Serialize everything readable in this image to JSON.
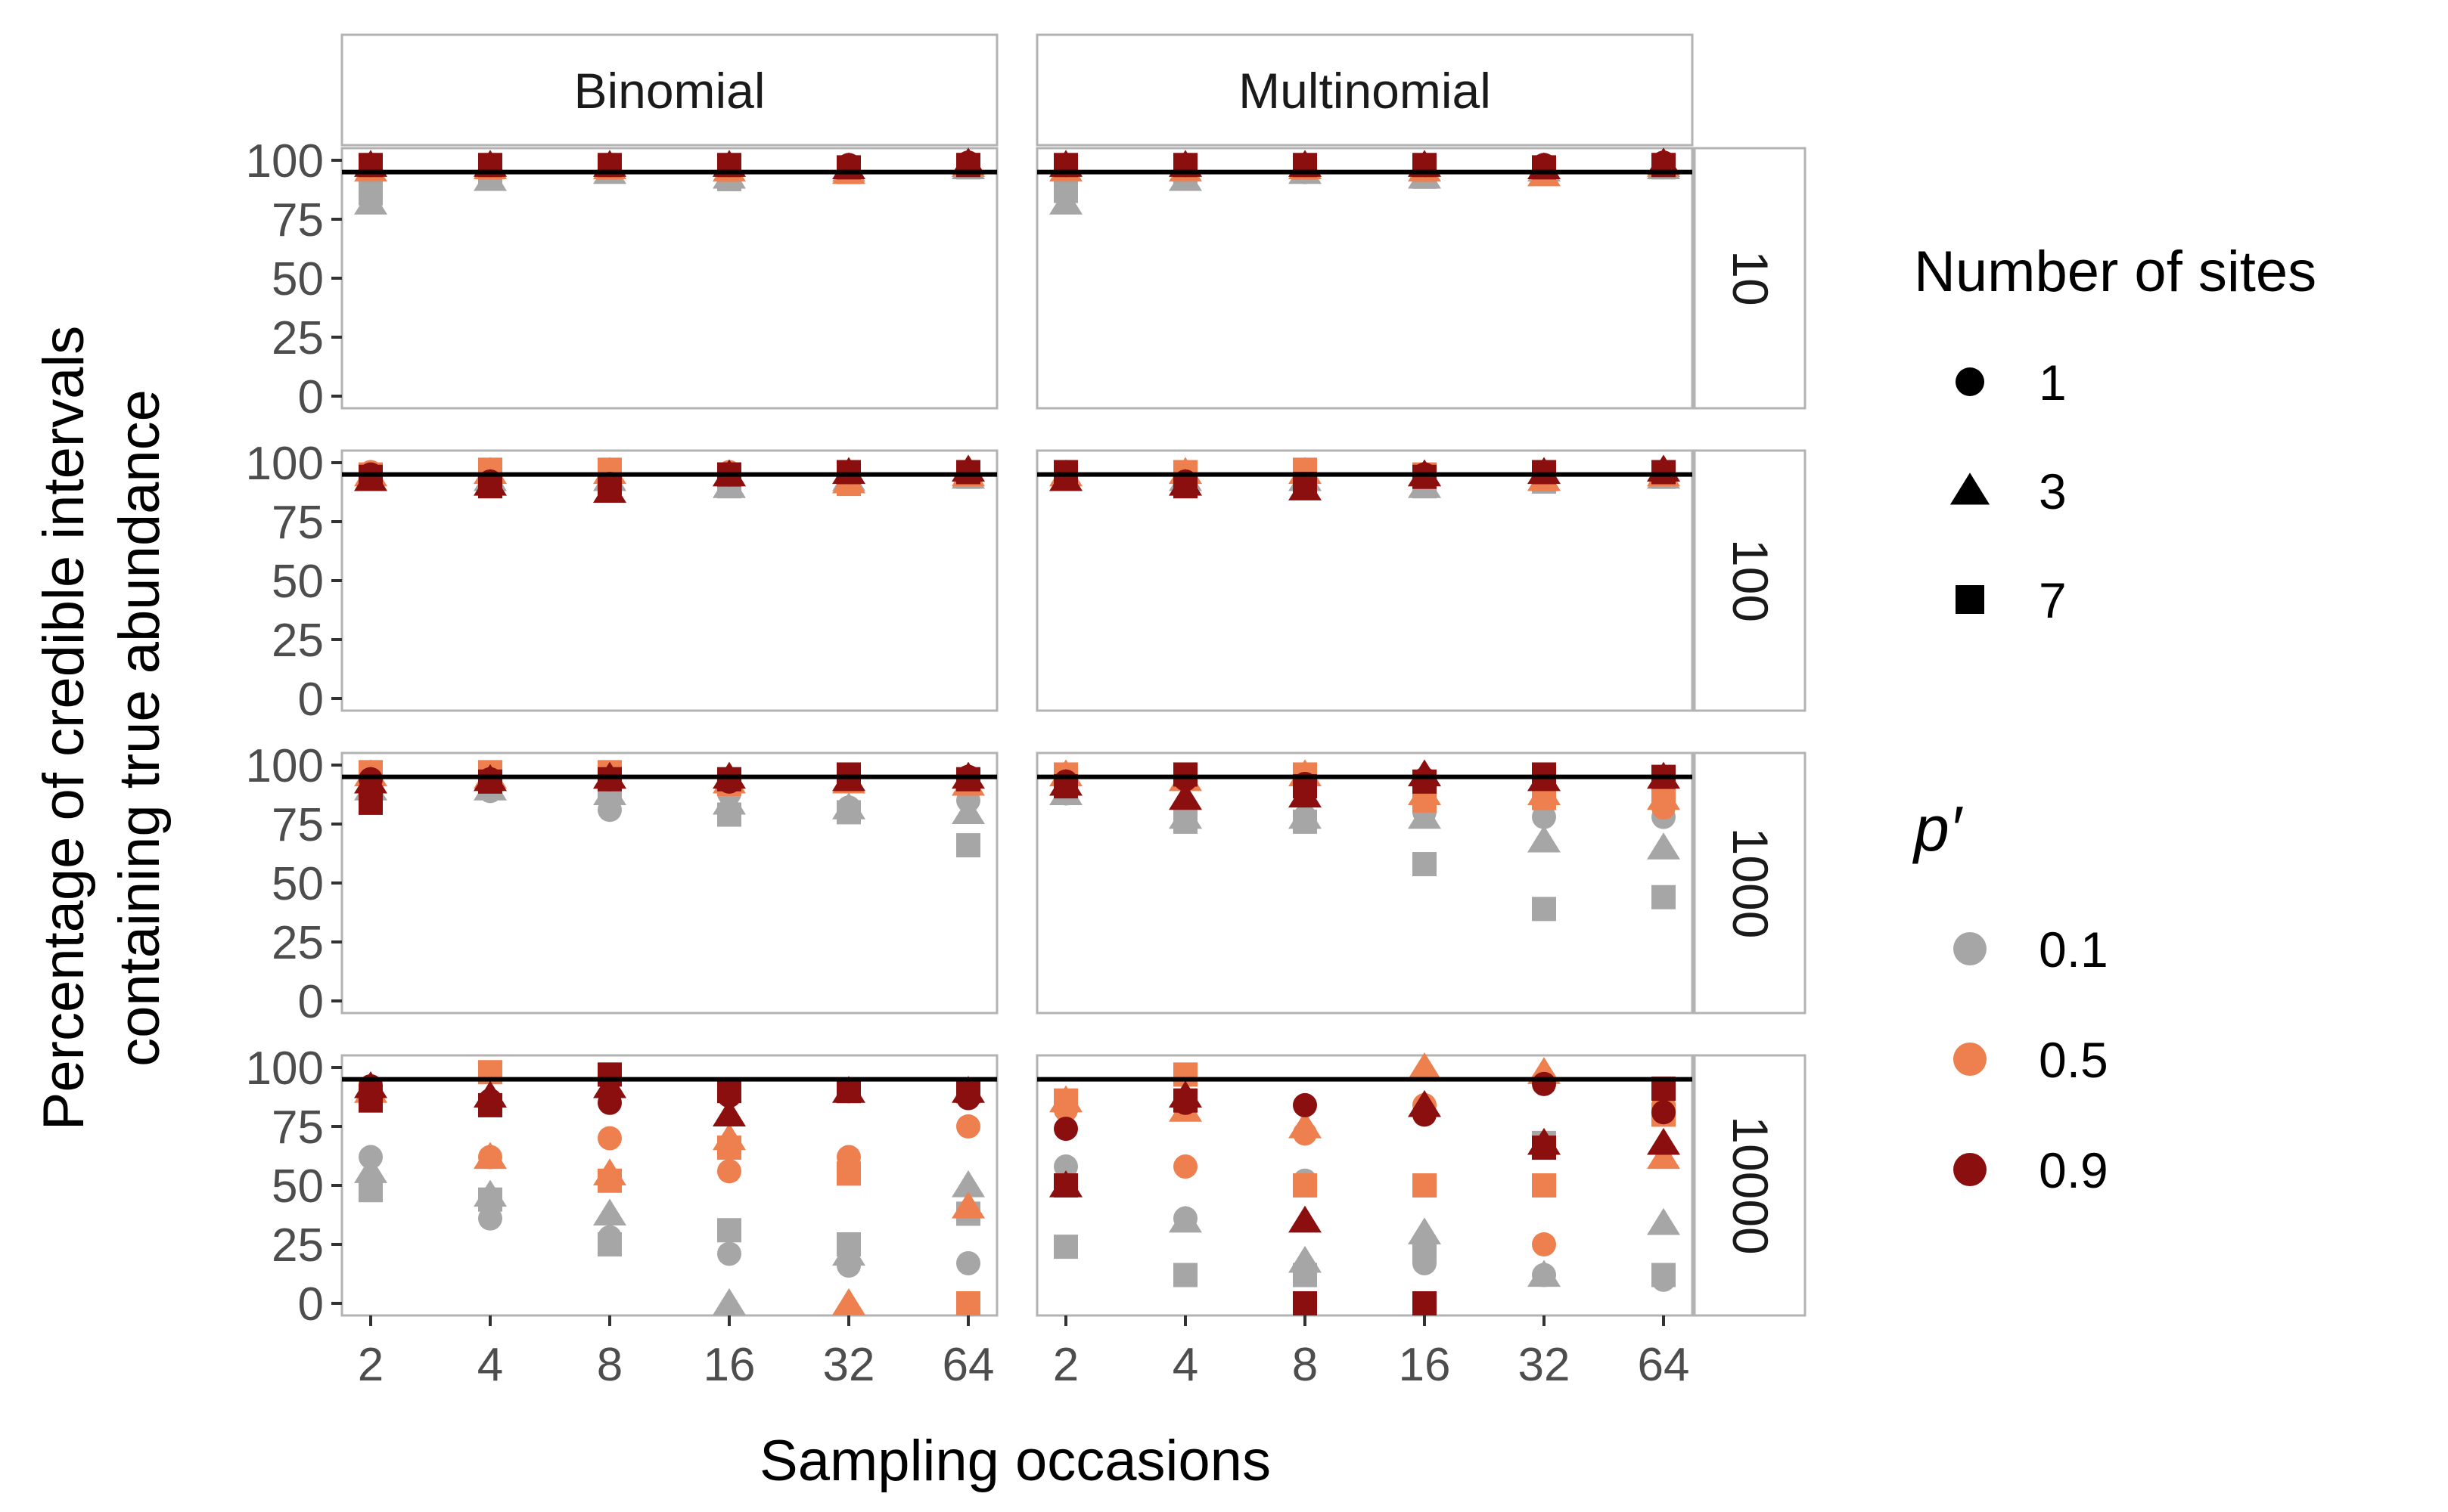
{
  "chart_data": {
    "type": "scatter",
    "facets": {
      "columns": [
        "Binomial",
        "Multinomial"
      ],
      "rows": [
        "10",
        "100",
        "1000",
        "10000"
      ]
    },
    "x": [
      2,
      4,
      8,
      16,
      32,
      64
    ],
    "x_scale": "log2",
    "ylim": [
      0,
      100
    ],
    "y_ticks": [
      "0",
      "25",
      "50",
      "75",
      "100"
    ],
    "x_tick_labels": [
      "2",
      "4",
      "8",
      "16",
      "32",
      "64"
    ],
    "xlabel": "Sampling occasions",
    "ylabel_lines": [
      "Percentage of credible intervals",
      "containing true abundance"
    ],
    "reference_line": 95,
    "grid": false,
    "legend_placement": "right",
    "legend": {
      "shape": {
        "title": "Number of sites",
        "entries": [
          {
            "label": "1",
            "shape": "circle"
          },
          {
            "label": "3",
            "shape": "triangle"
          },
          {
            "label": "7",
            "shape": "square"
          }
        ]
      },
      "color": {
        "title": "p′",
        "entries": [
          {
            "label": "0.1",
            "color": "#a6a6a6"
          },
          {
            "label": "0.5",
            "color": "#ee7f4e"
          },
          {
            "label": "0.9",
            "color": "#8b0f0f"
          }
        ]
      }
    },
    "panels": [
      {
        "column": "Binomial",
        "row": "10",
        "series": [
          {
            "sites": "1",
            "p": "0.1",
            "values": [
              90,
              94,
              96,
              96,
              96,
              98
            ]
          },
          {
            "sites": "3",
            "p": "0.1",
            "values": [
              82,
              92,
              95,
              93,
              96,
              97
            ]
          },
          {
            "sites": "7",
            "p": "0.1",
            "values": [
              86,
              94,
              96,
              92,
              96,
              97
            ]
          },
          {
            "sites": "1",
            "p": "0.5",
            "values": [
              97,
              97,
              97,
              96,
              95,
              98
            ]
          },
          {
            "sites": "3",
            "p": "0.5",
            "values": [
              96,
              97,
              97,
              96,
              95,
              98
            ]
          },
          {
            "sites": "7",
            "p": "0.5",
            "values": [
              97,
              97,
              97,
              96,
              95,
              98
            ]
          },
          {
            "sites": "1",
            "p": "0.9",
            "values": [
              98,
              98,
              98,
              98,
              98,
              99
            ]
          },
          {
            "sites": "3",
            "p": "0.9",
            "values": [
              98,
              98,
              98,
              98,
              97,
              99
            ]
          },
          {
            "sites": "7",
            "p": "0.9",
            "values": [
              98,
              98,
              98,
              98,
              97,
              98
            ]
          }
        ]
      },
      {
        "column": "Multinomial",
        "row": "10",
        "series": [
          {
            "sites": "1",
            "p": "0.1",
            "values": [
              88,
              93,
              95,
              94,
              96,
              97
            ]
          },
          {
            "sites": "3",
            "p": "0.1",
            "values": [
              82,
              92,
              95,
              93,
              96,
              97
            ]
          },
          {
            "sites": "7",
            "p": "0.1",
            "values": [
              87,
              93,
              96,
              93,
              96,
              97
            ]
          },
          {
            "sites": "1",
            "p": "0.5",
            "values": [
              97,
              96,
              97,
              96,
              95,
              98
            ]
          },
          {
            "sites": "3",
            "p": "0.5",
            "values": [
              96,
              96,
              97,
              96,
              94,
              98
            ]
          },
          {
            "sites": "7",
            "p": "0.5",
            "values": [
              97,
              97,
              97,
              96,
              95,
              98
            ]
          },
          {
            "sites": "1",
            "p": "0.9",
            "values": [
              98,
              98,
              98,
              98,
              98,
              99
            ]
          },
          {
            "sites": "3",
            "p": "0.9",
            "values": [
              98,
              98,
              98,
              98,
              97,
              99
            ]
          },
          {
            "sites": "7",
            "p": "0.9",
            "values": [
              98,
              98,
              98,
              98,
              97,
              98
            ]
          }
        ]
      },
      {
        "column": "Binomial",
        "row": "100",
        "series": [
          {
            "sites": "1",
            "p": "0.1",
            "values": [
              94,
              94,
              95,
              92,
              93,
              95
            ]
          },
          {
            "sites": "3",
            "p": "0.1",
            "values": [
              93,
              93,
              93,
              90,
              93,
              94
            ]
          },
          {
            "sites": "7",
            "p": "0.1",
            "values": [
              94,
              94,
              94,
              90,
              93,
              94
            ]
          },
          {
            "sites": "1",
            "p": "0.5",
            "values": [
              96,
              97,
              97,
              96,
              94,
              96
            ]
          },
          {
            "sites": "3",
            "p": "0.5",
            "values": [
              95,
              96,
              96,
              95,
              92,
              95
            ]
          },
          {
            "sites": "7",
            "p": "0.5",
            "values": [
              95,
              97,
              97,
              95,
              91,
              96
            ]
          },
          {
            "sites": "1",
            "p": "0.9",
            "values": [
              95,
              92,
              91,
              95,
              96,
              96
            ]
          },
          {
            "sites": "3",
            "p": "0.9",
            "values": [
              93,
              91,
              88,
              95,
              96,
              97
            ]
          },
          {
            "sites": "7",
            "p": "0.9",
            "values": [
              94,
              90,
              90,
              95,
              96,
              96
            ]
          }
        ]
      },
      {
        "column": "Multinomial",
        "row": "100",
        "series": [
          {
            "sites": "1",
            "p": "0.1",
            "values": [
              94,
              94,
              94,
              92,
              93,
              95
            ]
          },
          {
            "sites": "3",
            "p": "0.1",
            "values": [
              93,
              93,
              93,
              90,
              93,
              94
            ]
          },
          {
            "sites": "7",
            "p": "0.1",
            "values": [
              94,
              94,
              94,
              90,
              92,
              94
            ]
          },
          {
            "sites": "1",
            "p": "0.5",
            "values": [
              96,
              96,
              96,
              95,
              94,
              96
            ]
          },
          {
            "sites": "3",
            "p": "0.5",
            "values": [
              95,
              96,
              96,
              95,
              93,
              95
            ]
          },
          {
            "sites": "7",
            "p": "0.5",
            "values": [
              96,
              96,
              97,
              95,
              93,
              96
            ]
          },
          {
            "sites": "1",
            "p": "0.9",
            "values": [
              95,
              92,
              91,
              95,
              96,
              96
            ]
          },
          {
            "sites": "3",
            "p": "0.9",
            "values": [
              93,
              91,
              89,
              95,
              96,
              97
            ]
          },
          {
            "sites": "7",
            "p": "0.9",
            "values": [
              96,
              90,
              91,
              94,
              96,
              96
            ]
          }
        ]
      },
      {
        "column": "Binomial",
        "row": "1000",
        "series": [
          {
            "sites": "1",
            "p": "0.1",
            "values": [
              93,
              89,
              81,
              88,
              82,
              85
            ]
          },
          {
            "sites": "3",
            "p": "0.1",
            "values": [
              90,
              90,
              88,
              84,
              82,
              80
            ]
          },
          {
            "sites": "7",
            "p": "0.1",
            "values": [
              92,
              91,
              90,
              79,
              80,
              66
            ]
          },
          {
            "sites": "1",
            "p": "0.5",
            "values": [
              97,
              96,
              96,
              92,
              94,
              93
            ]
          },
          {
            "sites": "3",
            "p": "0.5",
            "values": [
              96,
              95,
              95,
              93,
              93,
              92
            ]
          },
          {
            "sites": "7",
            "p": "0.5",
            "values": [
              97,
              97,
              97,
              92,
              94,
              93
            ]
          },
          {
            "sites": "1",
            "p": "0.9",
            "values": [
              94,
              94,
              94,
              93,
              95,
              95
            ]
          },
          {
            "sites": "3",
            "p": "0.9",
            "values": [
              93,
              94,
              95,
              95,
              94,
              95
            ]
          },
          {
            "sites": "7",
            "p": "0.9",
            "values": [
              84,
              93,
              94,
              94,
              96,
              94
            ]
          }
        ]
      },
      {
        "column": "Multinomial",
        "row": "1000",
        "series": [
          {
            "sites": "1",
            "p": "0.1",
            "values": [
              88,
              80,
              78,
              80,
              78,
              78
            ]
          },
          {
            "sites": "3",
            "p": "0.1",
            "values": [
              88,
              78,
              78,
              78,
              68,
              65
            ]
          },
          {
            "sites": "7",
            "p": "0.1",
            "values": [
              90,
              76,
              76,
              58,
              39,
              44
            ]
          },
          {
            "sites": "1",
            "p": "0.5",
            "values": [
              96,
              95,
              95,
              85,
              88,
              82
            ]
          },
          {
            "sites": "3",
            "p": "0.5",
            "values": [
              96,
              94,
              96,
              88,
              88,
              86
            ]
          },
          {
            "sites": "7",
            "p": "0.5",
            "values": [
              96,
              96,
              96,
              85,
              86,
              88
            ]
          },
          {
            "sites": "1",
            "p": "0.9",
            "values": [
              93,
              94,
              92,
              94,
              95,
              95
            ]
          },
          {
            "sites": "3",
            "p": "0.9",
            "values": [
              92,
              86,
              87,
              96,
              94,
              95
            ]
          },
          {
            "sites": "7",
            "p": "0.9",
            "values": [
              91,
              96,
              91,
              93,
              96,
              95
            ]
          }
        ]
      },
      {
        "column": "Binomial",
        "row": "10000",
        "series": [
          {
            "sites": "1",
            "p": "0.1",
            "values": [
              62,
              36,
              28,
              21,
              16,
              17
            ]
          },
          {
            "sites": "3",
            "p": "0.1",
            "values": [
              56,
              46,
              38,
              0,
              21,
              50
            ]
          },
          {
            "sites": "7",
            "p": "0.1",
            "values": [
              48,
              44,
              25,
              31,
              25,
              38
            ]
          },
          {
            "sites": "1",
            "p": "0.5",
            "values": [
              86,
              62,
              70,
              56,
              62,
              75
            ]
          },
          {
            "sites": "3",
            "p": "0.5",
            "values": [
              90,
              62,
              55,
              70,
              0,
              41
            ]
          },
          {
            "sites": "7",
            "p": "0.5",
            "values": [
              90,
              98,
              52,
              66,
              55,
              0
            ]
          },
          {
            "sites": "1",
            "p": "0.9",
            "values": [
              92,
              86,
              85,
              88,
              90,
              87
            ]
          },
          {
            "sites": "3",
            "p": "0.9",
            "values": [
              92,
              88,
              92,
              80,
              90,
              90
            ]
          },
          {
            "sites": "7",
            "p": "0.9",
            "values": [
              86,
              84,
              97,
              90,
              90,
              90
            ]
          }
        ]
      },
      {
        "column": "Multinomial",
        "row": "10000",
        "series": [
          {
            "sites": "1",
            "p": "0.1",
            "values": [
              58,
              36,
              52,
              17,
              12,
              10
            ]
          },
          {
            "sites": "3",
            "p": "0.1",
            "values": [
              50,
              35,
              18,
              30,
              12,
              34
            ]
          },
          {
            "sites": "7",
            "p": "0.1",
            "values": [
              24,
              12,
              12,
              22,
              68,
              12
            ]
          },
          {
            "sites": "1",
            "p": "0.5",
            "values": [
              82,
              58,
              72,
              84,
              25,
              84
            ]
          },
          {
            "sites": "3",
            "p": "0.5",
            "values": [
              86,
              82,
              75,
              100,
              98,
              62
            ]
          },
          {
            "sites": "7",
            "p": "0.5",
            "values": [
              86,
              97,
              50,
              50,
              50,
              80
            ]
          },
          {
            "sites": "1",
            "p": "0.9",
            "values": [
              74,
              85,
              84,
              80,
              93,
              81
            ]
          },
          {
            "sites": "3",
            "p": "0.9",
            "values": [
              50,
              88,
              35,
              84,
              68,
              68
            ]
          },
          {
            "sites": "7",
            "p": "0.9",
            "values": [
              50,
              86,
              0,
              0,
              66,
              91
            ]
          }
        ]
      }
    ]
  }
}
